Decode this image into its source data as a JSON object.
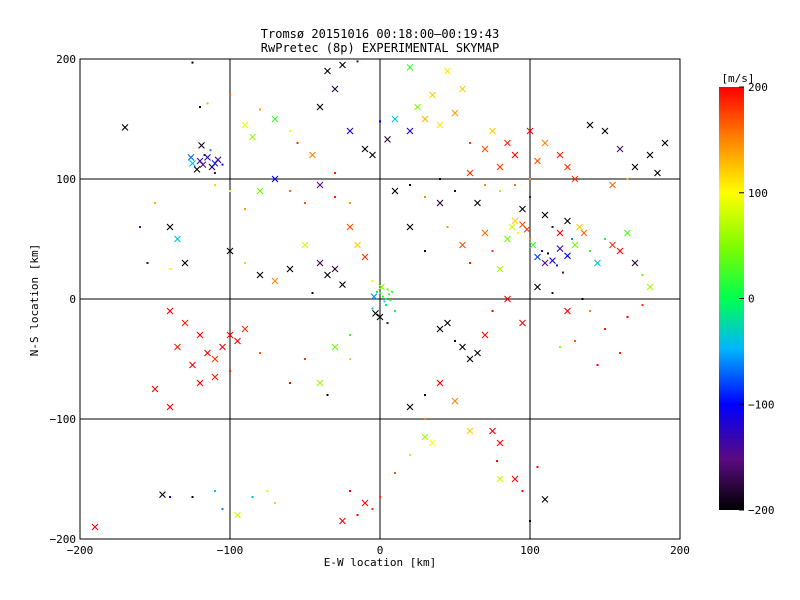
{
  "chart_data": {
    "type": "scatter",
    "title": "Tromsø 20151016 00:18:00–00:19:43",
    "subtitle": "RwPretec (8p) EXPERIMENTAL SKYMAP",
    "xlabel": "E-W location [km]",
    "ylabel": "N-S location [km]",
    "xlim": [
      -200,
      200
    ],
    "ylim": [
      -200,
      200
    ],
    "xticks": [
      "−200",
      "−100",
      "0",
      "100",
      "200"
    ],
    "yticks": [
      "−200",
      "−100",
      "0",
      "100",
      "200"
    ],
    "grid": true,
    "colorbar": {
      "label": "[m/s]",
      "min": -200,
      "max": 200,
      "ticks": [
        "−200",
        "−100",
        "0",
        "100",
        "200"
      ]
    },
    "marker_types": [
      "dot",
      "cross"
    ],
    "points": [
      [
        -120,
        115,
        -130,
        "x"
      ],
      [
        -118,
        112,
        -150,
        "x"
      ],
      [
        -115,
        118,
        -120,
        "x"
      ],
      [
        -112,
        110,
        -180,
        "x"
      ],
      [
        -110,
        113,
        -90,
        "x"
      ],
      [
        -122,
        108,
        -200,
        "x"
      ],
      [
        -108,
        116,
        -140,
        "x"
      ],
      [
        -117,
        120,
        -170,
        "d"
      ],
      [
        -113,
        124,
        -60,
        "d"
      ],
      [
        -125,
        113,
        -40,
        "x"
      ],
      [
        -105,
        112,
        -110,
        "d"
      ],
      [
        -119,
        128,
        -190,
        "x"
      ],
      [
        -110,
        105,
        -160,
        "d"
      ],
      [
        -126,
        118,
        -70,
        "x"
      ],
      [
        -170,
        143,
        -200,
        "x"
      ],
      [
        -120,
        160,
        -200,
        "d"
      ],
      [
        -125,
        197,
        -200,
        "d"
      ],
      [
        -115,
        163,
        130,
        "d"
      ],
      [
        -100,
        170,
        160,
        "d"
      ],
      [
        -90,
        145,
        90,
        "x"
      ],
      [
        -85,
        135,
        60,
        "x"
      ],
      [
        -80,
        158,
        140,
        "d"
      ],
      [
        -70,
        150,
        20,
        "x"
      ],
      [
        -60,
        140,
        100,
        "d"
      ],
      [
        -55,
        130,
        180,
        "d"
      ],
      [
        -40,
        160,
        -200,
        "x"
      ],
      [
        -30,
        175,
        -180,
        "x"
      ],
      [
        -35,
        190,
        -200,
        "x"
      ],
      [
        -25,
        195,
        -200,
        "x"
      ],
      [
        -15,
        198,
        -160,
        "d"
      ],
      [
        -45,
        120,
        150,
        "x"
      ],
      [
        -20,
        140,
        -120,
        "x"
      ],
      [
        -10,
        125,
        -200,
        "x"
      ],
      [
        -5,
        120,
        -200,
        "x"
      ],
      [
        -30,
        105,
        190,
        "d"
      ],
      [
        0,
        148,
        -100,
        "d"
      ],
      [
        5,
        133,
        -180,
        "x"
      ],
      [
        10,
        150,
        -40,
        "x"
      ],
      [
        20,
        140,
        -120,
        "x"
      ],
      [
        25,
        160,
        50,
        "x"
      ],
      [
        30,
        150,
        130,
        "x"
      ],
      [
        35,
        170,
        120,
        "x"
      ],
      [
        40,
        145,
        110,
        "x"
      ],
      [
        45,
        190,
        110,
        "x"
      ],
      [
        50,
        155,
        140,
        "x"
      ],
      [
        55,
        175,
        120,
        "x"
      ],
      [
        20,
        193,
        20,
        "x"
      ],
      [
        60,
        130,
        180,
        "d"
      ],
      [
        70,
        125,
        170,
        "x"
      ],
      [
        75,
        140,
        120,
        "x"
      ],
      [
        80,
        110,
        180,
        "x"
      ],
      [
        85,
        130,
        190,
        "x"
      ],
      [
        90,
        120,
        200,
        "x"
      ],
      [
        100,
        140,
        200,
        "x"
      ],
      [
        105,
        115,
        170,
        "x"
      ],
      [
        110,
        130,
        150,
        "x"
      ],
      [
        120,
        120,
        190,
        "x"
      ],
      [
        125,
        110,
        180,
        "x"
      ],
      [
        130,
        100,
        180,
        "x"
      ],
      [
        140,
        145,
        -200,
        "x"
      ],
      [
        150,
        140,
        -200,
        "x"
      ],
      [
        160,
        125,
        -160,
        "x"
      ],
      [
        170,
        110,
        -200,
        "x"
      ],
      [
        180,
        120,
        -200,
        "x"
      ],
      [
        185,
        105,
        -200,
        "x"
      ],
      [
        190,
        130,
        -200,
        "x"
      ],
      [
        165,
        100,
        120,
        "d"
      ],
      [
        155,
        95,
        160,
        "x"
      ],
      [
        -140,
        60,
        -200,
        "x"
      ],
      [
        -135,
        50,
        -40,
        "x"
      ],
      [
        -130,
        30,
        -200,
        "x"
      ],
      [
        -100,
        40,
        -200,
        "x"
      ],
      [
        -90,
        30,
        120,
        "d"
      ],
      [
        -80,
        20,
        -200,
        "x"
      ],
      [
        -70,
        15,
        150,
        "x"
      ],
      [
        -60,
        25,
        -200,
        "x"
      ],
      [
        -50,
        45,
        80,
        "x"
      ],
      [
        -40,
        30,
        -170,
        "x"
      ],
      [
        -35,
        20,
        -200,
        "x"
      ],
      [
        -30,
        25,
        -180,
        "x"
      ],
      [
        -25,
        12,
        -200,
        "x"
      ],
      [
        -45,
        5,
        -200,
        "d"
      ],
      [
        -20,
        60,
        170,
        "x"
      ],
      [
        -15,
        45,
        120,
        "x"
      ],
      [
        -10,
        35,
        180,
        "x"
      ],
      [
        -5,
        15,
        90,
        "d"
      ],
      [
        0,
        5,
        20,
        "d"
      ],
      [
        2,
        2,
        10,
        "d"
      ],
      [
        4,
        0,
        0,
        "d"
      ],
      [
        6,
        4,
        30,
        "d"
      ],
      [
        3,
        -2,
        -30,
        "d"
      ],
      [
        5,
        8,
        40,
        "d"
      ],
      [
        -2,
        6,
        -20,
        "d"
      ],
      [
        7,
        -1,
        15,
        "d"
      ],
      [
        1,
        10,
        50,
        "x"
      ],
      [
        -4,
        2,
        -60,
        "x"
      ],
      [
        8,
        6,
        25,
        "d"
      ],
      [
        4,
        -5,
        -10,
        "d"
      ],
      [
        0,
        -15,
        -200,
        "x"
      ],
      [
        5,
        -20,
        -160,
        "d"
      ],
      [
        -5,
        -8,
        -40,
        "d"
      ],
      [
        10,
        -10,
        0,
        "d"
      ],
      [
        -3,
        -12,
        -200,
        "x"
      ],
      [
        20,
        60,
        -200,
        "x"
      ],
      [
        30,
        40,
        -200,
        "d"
      ],
      [
        40,
        80,
        -180,
        "x"
      ],
      [
        45,
        60,
        140,
        "d"
      ],
      [
        55,
        45,
        170,
        "x"
      ],
      [
        60,
        30,
        190,
        "d"
      ],
      [
        65,
        80,
        -200,
        "x"
      ],
      [
        70,
        55,
        160,
        "x"
      ],
      [
        75,
        40,
        180,
        "d"
      ],
      [
        80,
        25,
        60,
        "x"
      ],
      [
        85,
        50,
        40,
        "x"
      ],
      [
        88,
        60,
        80,
        "x"
      ],
      [
        90,
        65,
        120,
        "x"
      ],
      [
        92,
        55,
        100,
        "d"
      ],
      [
        95,
        62,
        170,
        "x"
      ],
      [
        98,
        58,
        180,
        "x"
      ],
      [
        100,
        50,
        150,
        "d"
      ],
      [
        102,
        45,
        20,
        "x"
      ],
      [
        105,
        35,
        -80,
        "x"
      ],
      [
        108,
        40,
        -120,
        "d"
      ],
      [
        110,
        30,
        -150,
        "x"
      ],
      [
        112,
        38,
        -200,
        "d"
      ],
      [
        115,
        32,
        -110,
        "x"
      ],
      [
        118,
        28,
        -90,
        "d"
      ],
      [
        120,
        42,
        -130,
        "x"
      ],
      [
        122,
        22,
        -160,
        "d"
      ],
      [
        125,
        36,
        -100,
        "x"
      ],
      [
        128,
        50,
        -60,
        "d"
      ],
      [
        130,
        45,
        40,
        "x"
      ],
      [
        133,
        60,
        120,
        "x"
      ],
      [
        136,
        55,
        160,
        "x"
      ],
      [
        140,
        40,
        20,
        "d"
      ],
      [
        145,
        30,
        -40,
        "x"
      ],
      [
        150,
        50,
        0,
        "d"
      ],
      [
        155,
        45,
        180,
        "x"
      ],
      [
        160,
        40,
        200,
        "x"
      ],
      [
        165,
        55,
        30,
        "x"
      ],
      [
        170,
        30,
        -180,
        "x"
      ],
      [
        175,
        20,
        40,
        "d"
      ],
      [
        180,
        10,
        60,
        "x"
      ],
      [
        95,
        75,
        -200,
        "x"
      ],
      [
        100,
        85,
        -160,
        "d"
      ],
      [
        110,
        70,
        -200,
        "x"
      ],
      [
        115,
        60,
        -170,
        "d"
      ],
      [
        120,
        55,
        200,
        "x"
      ],
      [
        125,
        65,
        -200,
        "x"
      ],
      [
        105,
        10,
        -200,
        "x"
      ],
      [
        115,
        5,
        -180,
        "d"
      ],
      [
        125,
        -10,
        200,
        "x"
      ],
      [
        135,
        0,
        -200,
        "d"
      ],
      [
        85,
        0,
        200,
        "x"
      ],
      [
        75,
        -10,
        200,
        "d"
      ],
      [
        70,
        -30,
        200,
        "x"
      ],
      [
        95,
        -20,
        200,
        "x"
      ],
      [
        60,
        -50,
        -200,
        "x"
      ],
      [
        45,
        -20,
        -200,
        "x"
      ],
      [
        50,
        -35,
        -200,
        "d"
      ],
      [
        55,
        -40,
        -200,
        "x"
      ],
      [
        65,
        -45,
        -200,
        "x"
      ],
      [
        40,
        -25,
        -200,
        "x"
      ],
      [
        -140,
        -10,
        200,
        "x"
      ],
      [
        -130,
        -20,
        190,
        "x"
      ],
      [
        -120,
        -30,
        200,
        "x"
      ],
      [
        -115,
        -45,
        200,
        "x"
      ],
      [
        -110,
        -50,
        180,
        "x"
      ],
      [
        -105,
        -40,
        200,
        "x"
      ],
      [
        -125,
        -55,
        200,
        "x"
      ],
      [
        -135,
        -40,
        190,
        "x"
      ],
      [
        -120,
        -70,
        200,
        "x"
      ],
      [
        -110,
        -65,
        190,
        "x"
      ],
      [
        -100,
        -30,
        200,
        "x"
      ],
      [
        -95,
        -35,
        200,
        "x"
      ],
      [
        -90,
        -25,
        180,
        "x"
      ],
      [
        -150,
        -75,
        200,
        "x"
      ],
      [
        -140,
        -90,
        200,
        "x"
      ],
      [
        -100,
        -60,
        190,
        "d"
      ],
      [
        -80,
        -45,
        170,
        "d"
      ],
      [
        -60,
        -70,
        200,
        "d"
      ],
      [
        -50,
        -50,
        180,
        "d"
      ],
      [
        -30,
        -40,
        40,
        "x"
      ],
      [
        -20,
        -50,
        120,
        "d"
      ],
      [
        -35,
        -80,
        -200,
        "d"
      ],
      [
        -40,
        -70,
        60,
        "x"
      ],
      [
        -20,
        -30,
        20,
        "d"
      ],
      [
        20,
        -90,
        -200,
        "x"
      ],
      [
        30,
        -80,
        -200,
        "d"
      ],
      [
        40,
        -70,
        200,
        "x"
      ],
      [
        50,
        -85,
        150,
        "x"
      ],
      [
        30,
        -100,
        150,
        "d"
      ],
      [
        30,
        -115,
        60,
        "x"
      ],
      [
        35,
        -120,
        100,
        "x"
      ],
      [
        20,
        -130,
        80,
        "d"
      ],
      [
        10,
        -145,
        170,
        "d"
      ],
      [
        0,
        -165,
        180,
        "d"
      ],
      [
        -5,
        -175,
        180,
        "d"
      ],
      [
        -10,
        -170,
        200,
        "x"
      ],
      [
        -15,
        -180,
        200,
        "d"
      ],
      [
        -25,
        -185,
        200,
        "x"
      ],
      [
        -20,
        -160,
        200,
        "d"
      ],
      [
        60,
        -110,
        120,
        "x"
      ],
      [
        75,
        -110,
        200,
        "x"
      ],
      [
        80,
        -120,
        200,
        "x"
      ],
      [
        78,
        -135,
        200,
        "d"
      ],
      [
        80,
        -150,
        80,
        "x"
      ],
      [
        90,
        -150,
        200,
        "x"
      ],
      [
        95,
        -160,
        200,
        "d"
      ],
      [
        100,
        -185,
        -200,
        "d"
      ],
      [
        105,
        -140,
        200,
        "d"
      ],
      [
        110,
        -167,
        -200,
        "x"
      ],
      [
        -145,
        -163,
        -200,
        "x"
      ],
      [
        -140,
        -165,
        -120,
        "d"
      ],
      [
        -125,
        -165,
        -200,
        "d"
      ],
      [
        -110,
        -160,
        -30,
        "d"
      ],
      [
        -105,
        -175,
        -60,
        "d"
      ],
      [
        -95,
        -180,
        80,
        "x"
      ],
      [
        -190,
        -190,
        200,
        "x"
      ],
      [
        -85,
        -165,
        -40,
        "d"
      ],
      [
        -75,
        -160,
        90,
        "d"
      ],
      [
        -70,
        -170,
        120,
        "d"
      ],
      [
        165,
        -15,
        200,
        "d"
      ],
      [
        175,
        -5,
        180,
        "d"
      ],
      [
        150,
        -25,
        190,
        "d"
      ],
      [
        130,
        -35,
        170,
        "d"
      ],
      [
        120,
        -40,
        60,
        "d"
      ],
      [
        140,
        -10,
        150,
        "d"
      ],
      [
        145,
        -55,
        200,
        "d"
      ],
      [
        160,
        -45,
        190,
        "d"
      ],
      [
        -160,
        60,
        -140,
        "d"
      ],
      [
        -150,
        80,
        130,
        "d"
      ],
      [
        -155,
        30,
        -170,
        "d"
      ],
      [
        -140,
        25,
        100,
        "d"
      ],
      [
        -60,
        90,
        160,
        "d"
      ],
      [
        -50,
        80,
        170,
        "d"
      ],
      [
        -40,
        95,
        -150,
        "x"
      ],
      [
        -30,
        85,
        190,
        "d"
      ],
      [
        -20,
        80,
        140,
        "d"
      ],
      [
        -70,
        100,
        -100,
        "x"
      ],
      [
        -80,
        90,
        40,
        "x"
      ],
      [
        -90,
        75,
        140,
        "d"
      ],
      [
        -100,
        90,
        100,
        "d"
      ],
      [
        -110,
        95,
        120,
        "d"
      ],
      [
        10,
        90,
        -200,
        "x"
      ],
      [
        20,
        95,
        -200,
        "d"
      ],
      [
        30,
        85,
        150,
        "d"
      ],
      [
        40,
        100,
        -200,
        "d"
      ],
      [
        50,
        90,
        -180,
        "d"
      ],
      [
        60,
        105,
        180,
        "x"
      ],
      [
        70,
        95,
        150,
        "d"
      ],
      [
        80,
        90,
        120,
        "d"
      ],
      [
        90,
        95,
        160,
        "d"
      ],
      [
        100,
        100,
        150,
        "d"
      ]
    ]
  }
}
